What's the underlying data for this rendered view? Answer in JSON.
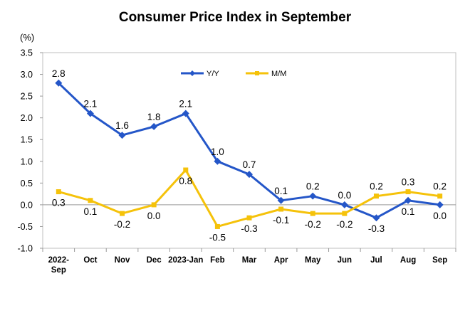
{
  "chart_data": {
    "type": "line",
    "title": "Consumer Price Index in September",
    "ylabel": "(%)",
    "xlabel": "",
    "ylim": [
      -1.0,
      3.5
    ],
    "yticks": [
      "3.5",
      "3.0",
      "2.5",
      "2.0",
      "1.5",
      "1.0",
      "0.5",
      "0.0",
      "-0.5",
      "-1.0"
    ],
    "ytick_values": [
      3.5,
      3.0,
      2.5,
      2.0,
      1.5,
      1.0,
      0.5,
      0.0,
      -0.5,
      -1.0
    ],
    "categories": [
      [
        "2022-",
        "Sep"
      ],
      [
        "Oct"
      ],
      [
        "Nov"
      ],
      [
        "Dec"
      ],
      [
        "2023-Jan"
      ],
      [
        "Feb"
      ],
      [
        "Mar"
      ],
      [
        "Apr"
      ],
      [
        "May"
      ],
      [
        "Jun"
      ],
      [
        "Jul"
      ],
      [
        "Aug"
      ],
      [
        "Sep"
      ]
    ],
    "grid": false,
    "legend_position": "top-center",
    "series": [
      {
        "name": "Y/Y",
        "color": "#2456C8",
        "marker": "diamond",
        "values": [
          2.8,
          2.1,
          1.6,
          1.8,
          2.1,
          1.0,
          0.7,
          0.1,
          0.2,
          0.0,
          -0.3,
          0.1,
          0.0
        ],
        "labels": [
          "2.8",
          "2.1",
          "1.6",
          "1.8",
          "2.1",
          "1.0",
          "0.7",
          "0.1",
          "0.2",
          "0.0",
          "-0.3",
          "0.1",
          "0.0"
        ],
        "label_side": [
          "above",
          "above",
          "above",
          "above",
          "above",
          "above",
          "above",
          "above",
          "above",
          "above",
          "below",
          "below",
          "below"
        ]
      },
      {
        "name": "M/M",
        "color": "#F5C20A",
        "marker": "square",
        "values": [
          0.3,
          0.1,
          -0.2,
          0.0,
          0.8,
          -0.5,
          -0.3,
          -0.1,
          -0.2,
          -0.2,
          0.2,
          0.3,
          0.2
        ],
        "labels": [
          "0.3",
          "0.1",
          "-0.2",
          "0.0",
          "0.8",
          "-0.5",
          "-0.3",
          "-0.1",
          "-0.2",
          "-0.2",
          "0.2",
          "0.3",
          "0.2"
        ],
        "label_side": [
          "below",
          "below",
          "below",
          "below",
          "below",
          "below",
          "below",
          "below",
          "below",
          "below",
          "above",
          "above",
          "above"
        ]
      }
    ]
  }
}
